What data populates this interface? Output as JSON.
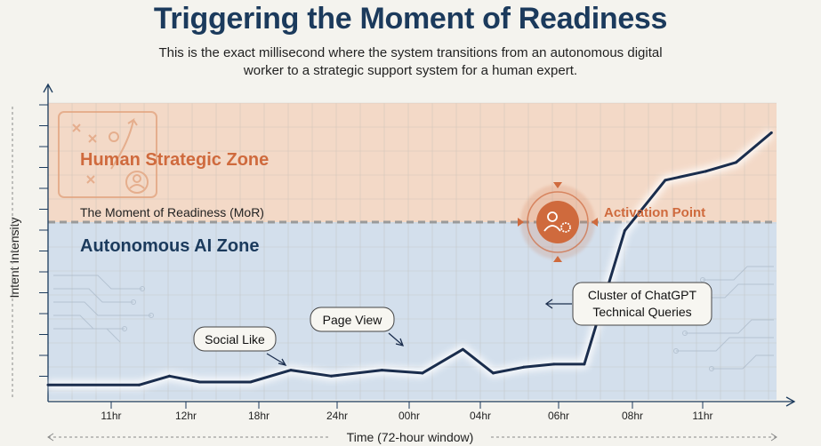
{
  "header": {
    "title": "Triggering the Moment of Readiness",
    "subtitle_line1": "This is the exact millisecond where the system transitions from an autonomous digital",
    "subtitle_line2": "worker to a strategic support system for a human expert."
  },
  "zones": {
    "upper": "Human Strategic Zone",
    "threshold": "The Moment of Readiness (MoR)",
    "lower": "Autonomous AI Zone"
  },
  "annotations": {
    "activation": "Activation Point",
    "social_like": "Social Like",
    "page_view": "Page View",
    "cluster_line1": "Cluster of ChatGPT",
    "cluster_line2": "Technical Queries"
  },
  "colors": {
    "title": "#1b3a5c",
    "human_zone": "#f3d9c7",
    "ai_zone": "#d3dfec",
    "line": "#1a2d4d",
    "accent": "#cf6a3d",
    "threshold": "#9a9a9a"
  },
  "chart_data": {
    "type": "line",
    "title": "Triggering the Moment of Readiness",
    "xlabel": "Time (72-hour window)",
    "ylabel": "Intent Intensity",
    "x_tick_labels": [
      "11hr",
      "12hr",
      "18hr",
      "24hr",
      "00hr",
      "04hr",
      "06hr",
      "08hr",
      "11hr"
    ],
    "threshold": 0.53,
    "ylim": [
      0,
      1
    ],
    "xlim": [
      0,
      72
    ],
    "grid": true,
    "series": [
      {
        "x": [
          0,
          9,
          12,
          15,
          20,
          24,
          28,
          33,
          37,
          41,
          44,
          47,
          50,
          53,
          57,
          61,
          65,
          68,
          71.5
        ],
        "y": [
          0.05,
          0.05,
          0.08,
          0.06,
          0.06,
          0.1,
          0.08,
          0.1,
          0.09,
          0.17,
          0.09,
          0.11,
          0.12,
          0.12,
          0.57,
          0.74,
          0.77,
          0.8,
          0.9
        ]
      }
    ]
  }
}
